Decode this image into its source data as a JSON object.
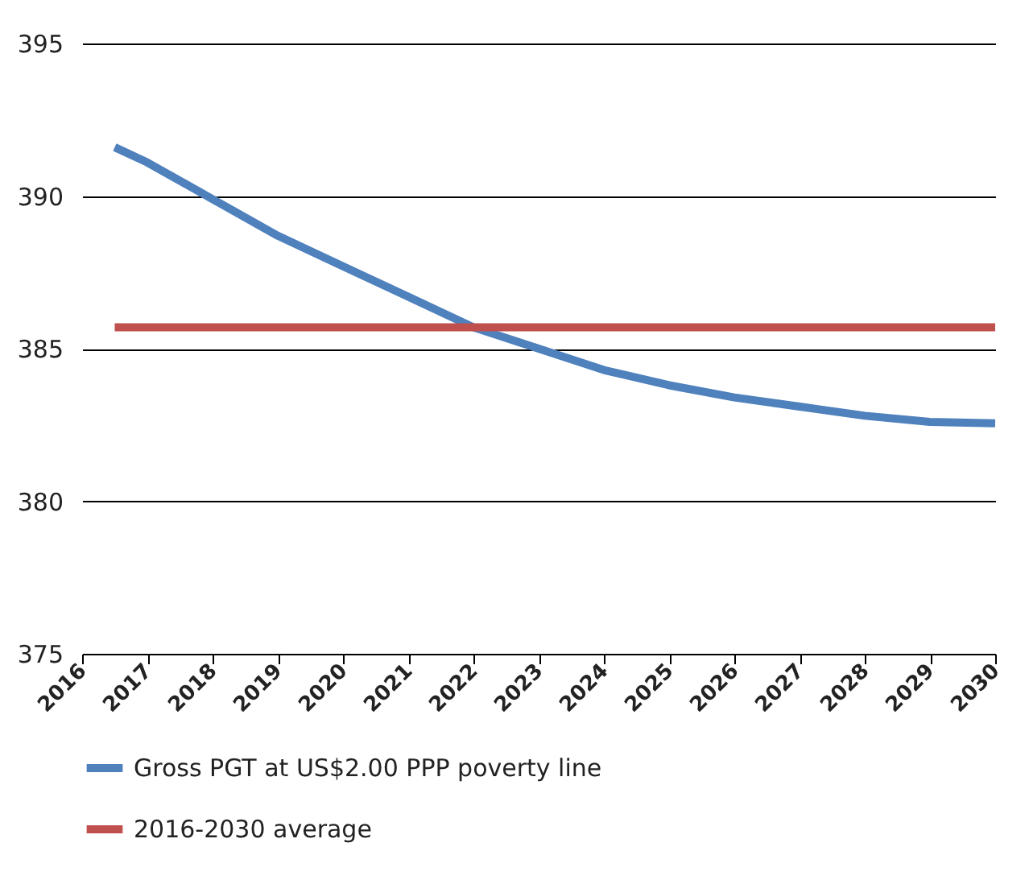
{
  "chart_data": {
    "type": "line",
    "xlim": [
      2016,
      2030
    ],
    "xticks": [
      2016,
      2017,
      2018,
      2019,
      2020,
      2021,
      2022,
      2023,
      2024,
      2025,
      2026,
      2027,
      2028,
      2029,
      2030
    ],
    "ylim": [
      375,
      395
    ],
    "yticks": [
      375,
      380,
      385,
      390,
      395
    ],
    "grid": "y",
    "legend": "bottom",
    "marker": "none",
    "line_style": "solid",
    "series": [
      {
        "name": "Gross PGT at  US$2.00 PPP poverty line",
        "color": "#4f81bd",
        "x": [
          2016.5,
          2017,
          2018,
          2019,
          2020,
          2021,
          2022,
          2023,
          2024,
          2025,
          2026,
          2027,
          2028,
          2029,
          2030
        ],
        "values": [
          391.6,
          391.1,
          389.9,
          388.7,
          387.7,
          386.7,
          385.7,
          385.0,
          384.3,
          383.8,
          383.4,
          383.1,
          382.8,
          382.6,
          382.55
        ]
      },
      {
        "name": "2016-2030 average",
        "color": "#c0504d",
        "x": [
          2016.5,
          2030
        ],
        "values": [
          385.7,
          385.7
        ]
      }
    ]
  }
}
